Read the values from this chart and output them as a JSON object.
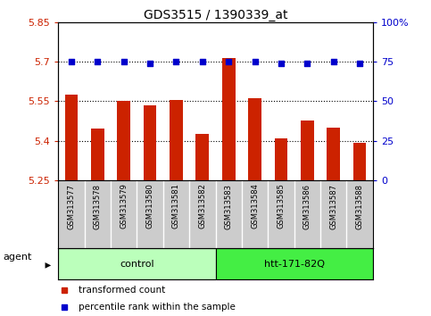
{
  "title": "GDS3515 / 1390339_at",
  "samples": [
    "GSM313577",
    "GSM313578",
    "GSM313579",
    "GSM313580",
    "GSM313581",
    "GSM313582",
    "GSM313583",
    "GSM313584",
    "GSM313585",
    "GSM313586",
    "GSM313587",
    "GSM313588"
  ],
  "bar_values": [
    5.575,
    5.445,
    5.55,
    5.535,
    5.555,
    5.425,
    5.715,
    5.56,
    5.41,
    5.475,
    5.45,
    5.39
  ],
  "percentile_values": [
    75,
    75,
    75,
    74,
    75,
    75,
    75,
    75,
    74,
    74,
    75,
    74
  ],
  "bar_color": "#cc2200",
  "percentile_color": "#0000cc",
  "ymin": 5.25,
  "ymax": 5.85,
  "yticks": [
    5.25,
    5.4,
    5.55,
    5.7,
    5.85
  ],
  "ytick_labels": [
    "5.25",
    "5.4",
    "5.55",
    "5.7",
    "5.85"
  ],
  "y2min": 0,
  "y2max": 100,
  "y2ticks": [
    0,
    25,
    50,
    75,
    100
  ],
  "y2tick_labels": [
    "0",
    "25",
    "50",
    "75",
    "100%"
  ],
  "hlines": [
    5.4,
    5.55,
    5.7
  ],
  "groups": [
    {
      "label": "control",
      "start": 0,
      "end": 5,
      "color": "#bbffbb"
    },
    {
      "label": "htt-171-82Q",
      "start": 6,
      "end": 11,
      "color": "#44ee44"
    }
  ],
  "agent_label": "agent",
  "legend_items": [
    {
      "label": "transformed count",
      "color": "#cc2200"
    },
    {
      "label": "percentile rank within the sample",
      "color": "#0000cc"
    }
  ],
  "sample_bg_color": "#cccccc",
  "figsize": [
    4.83,
    3.54
  ],
  "dpi": 100
}
